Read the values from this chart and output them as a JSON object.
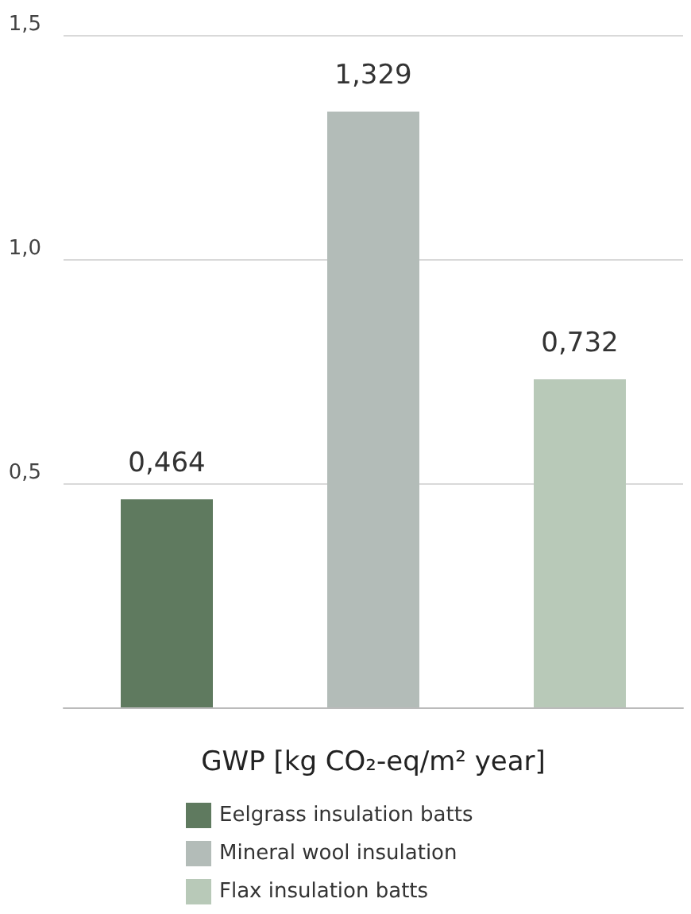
{
  "chart_data": {
    "type": "bar",
    "xlabel": "GWP [kg CO₂-eq/m² year]",
    "categories": [
      null,
      null,
      null
    ],
    "series": [
      {
        "name": "Eelgrass insulation batts",
        "color": "#5f7a5f",
        "values": [
          0.464,
          null,
          null
        ],
        "value_labels": [
          "0,464",
          null,
          null
        ]
      },
      {
        "name": "Mineral wool insulation",
        "color": "#b3bcb8",
        "values": [
          null,
          1.329,
          null
        ],
        "value_labels": [
          null,
          "1,329",
          null
        ]
      },
      {
        "name": "Flax insulation batts",
        "color": "#b8c9b8",
        "values": [
          null,
          null,
          0.732
        ],
        "value_labels": [
          null,
          null,
          "0,732"
        ]
      }
    ],
    "ylim": [
      0,
      1.5
    ],
    "yticks": [
      {
        "value": 0.5,
        "label": "0,5"
      },
      {
        "value": 1.0,
        "label": "1,0"
      },
      {
        "value": 1.5,
        "label": "1,5"
      }
    ],
    "grid": "y",
    "legend": "bottom"
  }
}
